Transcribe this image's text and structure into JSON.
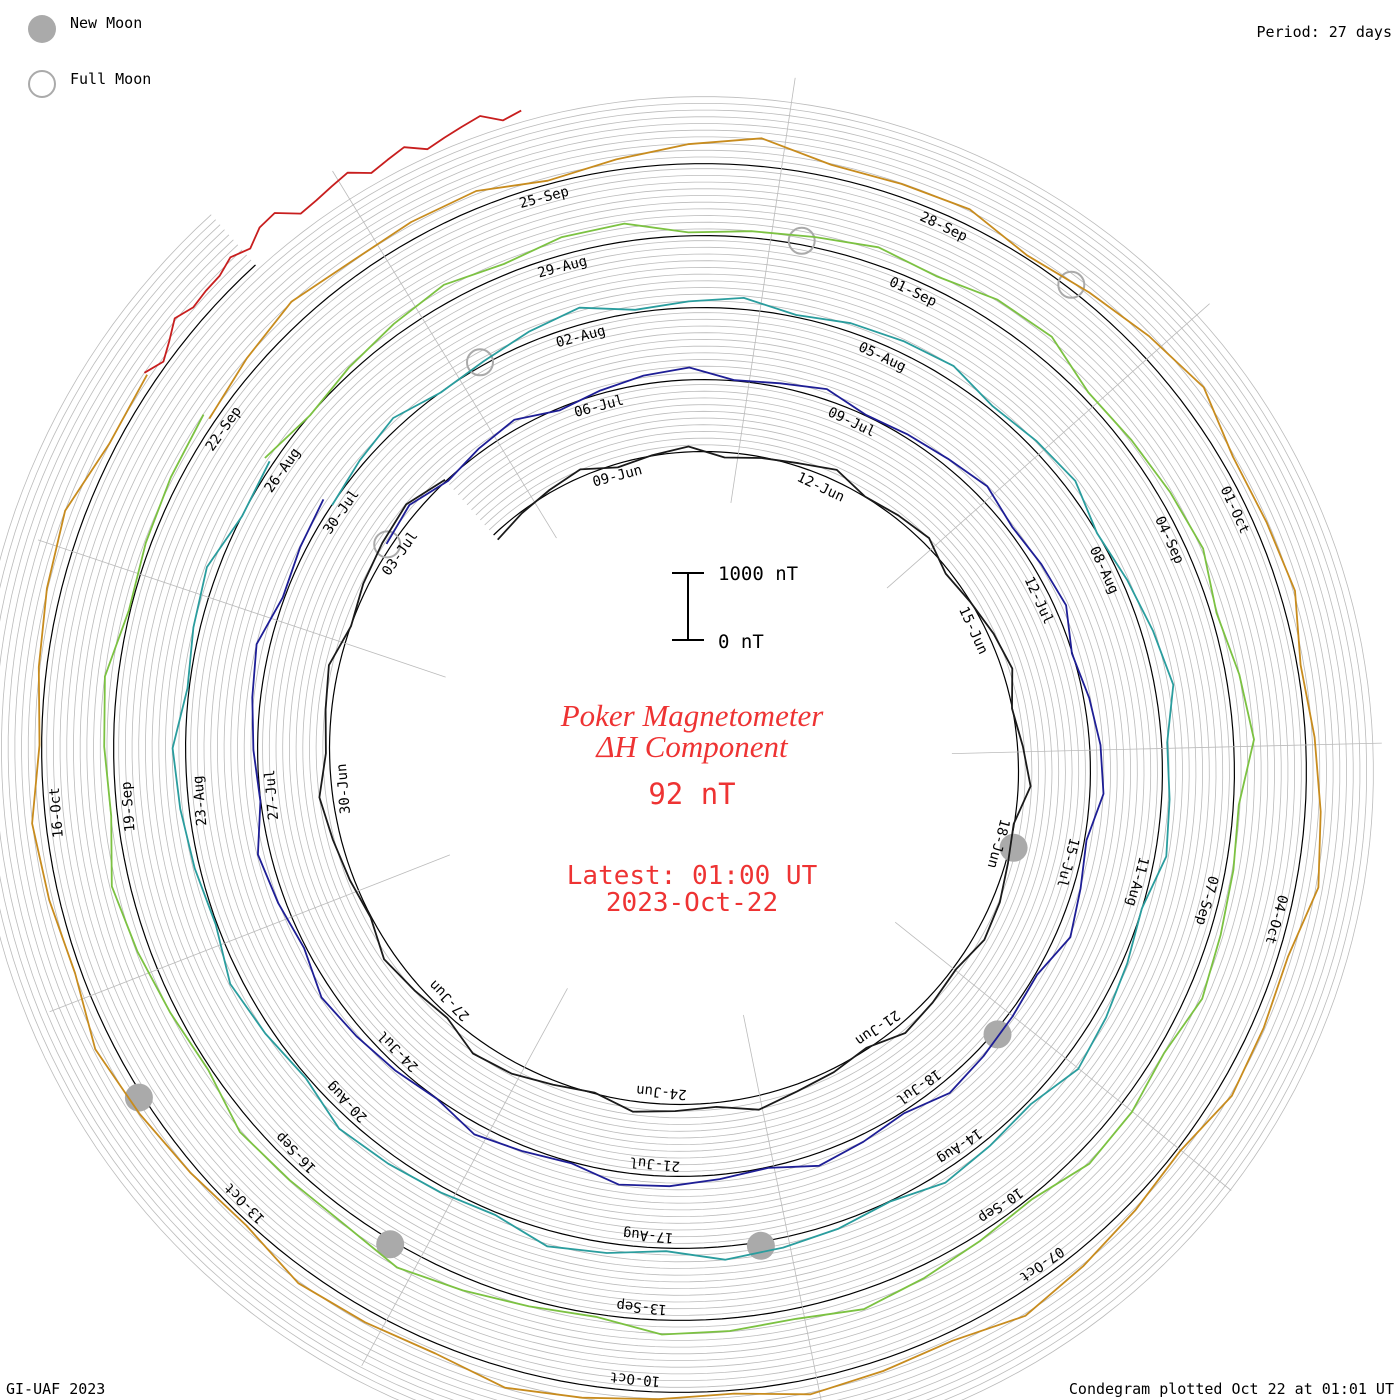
{
  "header": {
    "new_moon_label": "New Moon",
    "full_moon_label": "Full Moon",
    "period_label": "Period: 27 days"
  },
  "center": {
    "title_line1": "Poker Magnetometer",
    "title_line2": "ΔH Component",
    "current_value": "92 nT",
    "latest_line1": "Latest: 01:00 UT",
    "latest_line2": "2023-Oct-22",
    "scale_max_label": "1000 nT",
    "scale_min_label": "0 nT"
  },
  "footer": {
    "credit": "GI-UAF 2023",
    "plotted": "Condegram plotted Oct 22 at 01:01 UT"
  },
  "colors": {
    "title_red": "#ee3333",
    "moon_grey": "#aaaaaa",
    "grid_grey": "#bbbbbb"
  },
  "chart_data": {
    "type": "line",
    "title": "Poker Magnetometer ΔH Component",
    "subtitle": "92 nT",
    "scale_nt": [
      0,
      1000
    ],
    "start_date": "2023-Jun-07",
    "period_days": 27,
    "turns": 5,
    "date_labels": [
      {
        "text": "09-Jun",
        "day": 2
      },
      {
        "text": "12-Jun",
        "day": 5
      },
      {
        "text": "15-Jun",
        "day": 8
      },
      {
        "text": "18-Jun",
        "day": 11
      },
      {
        "text": "21-Jun",
        "day": 14
      },
      {
        "text": "24-Jun",
        "day": 17
      },
      {
        "text": "27-Jun",
        "day": 20
      },
      {
        "text": "30-Jun",
        "day": 23
      },
      {
        "text": "03-Jul",
        "day": 26
      },
      {
        "text": "06-Jul",
        "day": 29
      },
      {
        "text": "09-Jul",
        "day": 32
      },
      {
        "text": "12-Jul",
        "day": 35
      },
      {
        "text": "15-Jul",
        "day": 38
      },
      {
        "text": "18-Jul",
        "day": 41
      },
      {
        "text": "21-Jul",
        "day": 44
      },
      {
        "text": "24-Jul",
        "day": 47
      },
      {
        "text": "27-Jul",
        "day": 50
      },
      {
        "text": "30-Jul",
        "day": 53
      },
      {
        "text": "02-Aug",
        "day": 56
      },
      {
        "text": "05-Aug",
        "day": 59
      },
      {
        "text": "08-Aug",
        "day": 62
      },
      {
        "text": "11-Aug",
        "day": 65
      },
      {
        "text": "14-Aug",
        "day": 68
      },
      {
        "text": "17-Aug",
        "day": 71
      },
      {
        "text": "20-Aug",
        "day": 74
      },
      {
        "text": "23-Aug",
        "day": 77
      },
      {
        "text": "26-Aug",
        "day": 80
      },
      {
        "text": "29-Aug",
        "day": 83
      },
      {
        "text": "01-Sep",
        "day": 86
      },
      {
        "text": "04-Sep",
        "day": 89
      },
      {
        "text": "07-Sep",
        "day": 92
      },
      {
        "text": "10-Sep",
        "day": 95
      },
      {
        "text": "13-Sep",
        "day": 98
      },
      {
        "text": "16-Sep",
        "day": 101
      },
      {
        "text": "19-Sep",
        "day": 104
      },
      {
        "text": "22-Sep",
        "day": 107
      },
      {
        "text": "25-Sep",
        "day": 110
      },
      {
        "text": "28-Sep",
        "day": 113
      },
      {
        "text": "01-Oct",
        "day": 116
      },
      {
        "text": "04-Oct",
        "day": 119
      },
      {
        "text": "07-Oct",
        "day": 122
      },
      {
        "text": "10-Oct",
        "day": 125
      },
      {
        "text": "13-Oct",
        "day": 128
      },
      {
        "text": "16-Oct",
        "day": 131
      }
    ],
    "new_moons": [
      "2023-Jun-18",
      "2023-Jul-17",
      "2023-Aug-16",
      "2023-Sep-15",
      "2023-Oct-14"
    ],
    "full_moons": [
      "2023-Jul-03",
      "2023-Aug-01",
      "2023-Aug-31",
      "2023-Sep-29"
    ],
    "series": [
      {
        "color": "#1a1a1a",
        "dates": "07-Jun – 03-Jul",
        "dh_nt": [
          5,
          8,
          6,
          10,
          12,
          9,
          15,
          20,
          18,
          14,
          60,
          70,
          55,
          40,
          35,
          30,
          45,
          50,
          60,
          80,
          120,
          90,
          70,
          85,
          60,
          110,
          95,
          80,
          75,
          85,
          70,
          110,
          130,
          100,
          90,
          85,
          95,
          140,
          120,
          105,
          95,
          100,
          110,
          95,
          88,
          100,
          120,
          90,
          85,
          95,
          110,
          100,
          92,
          88
        ]
      },
      {
        "color": "#1e1e96",
        "dates": "03-Jul – 30-Jul",
        "dh_nt": [
          40,
          50,
          45,
          60,
          70,
          65,
          80,
          95,
          85,
          75,
          60,
          90,
          110,
          85,
          70,
          95,
          140,
          120,
          100,
          90,
          115,
          130,
          105,
          95,
          110,
          150,
          125,
          100,
          90,
          85,
          95,
          105,
          120,
          110,
          100,
          115,
          90,
          85,
          80,
          95,
          105,
          100,
          90,
          85,
          95,
          110,
          120,
          105,
          95,
          90,
          100,
          92,
          88,
          85
        ]
      },
      {
        "color": "#2a9d9e",
        "dates": "30-Jul – 26-Aug",
        "dh_nt": [
          60,
          70,
          85,
          95,
          80,
          120,
          150,
          110,
          95,
          105,
          130,
          160,
          140,
          110,
          125,
          115,
          100,
          95,
          110,
          140,
          180,
          150,
          120,
          105,
          95,
          110,
          130,
          150,
          120,
          100,
          95,
          105,
          125,
          115,
          100,
          110,
          150,
          170,
          140,
          120,
          110,
          100,
          95,
          105,
          115,
          120,
          110,
          100,
          95,
          90,
          100,
          105,
          95,
          92
        ]
      },
      {
        "color": "#7cc242",
        "dates": "26-Aug – 22-Sep",
        "dh_nt": [
          80,
          95,
          110,
          130,
          160,
          220,
          260,
          200,
          150,
          130,
          120,
          160,
          250,
          320,
          280,
          200,
          160,
          140,
          130,
          150,
          200,
          240,
          180,
          150,
          130,
          140,
          170,
          200,
          160,
          140,
          130,
          150,
          180,
          220,
          190,
          150,
          140,
          130,
          160,
          210,
          250,
          190,
          160,
          140,
          130,
          150,
          170,
          160,
          140,
          130,
          120,
          110,
          100,
          95
        ]
      },
      {
        "color": "#c88c1e",
        "dates": "22-Sep – 19-Oct",
        "dh_nt": [
          120,
          160,
          210,
          280,
          240,
          180,
          150,
          190,
          260,
          320,
          250,
          190,
          160,
          140,
          170,
          230,
          290,
          240,
          180,
          160,
          150,
          170,
          200,
          240,
          210,
          180,
          160,
          150,
          160,
          190,
          230,
          200,
          170,
          160,
          150,
          140,
          160,
          190,
          210,
          180,
          160,
          150,
          140,
          150,
          170,
          160,
          150,
          140,
          130,
          150,
          180,
          200,
          170,
          150
        ]
      },
      {
        "color": "#c81e1e",
        "dates": "19-Oct – 22-Oct",
        "dh_nt": [
          100,
          130,
          180,
          260,
          320,
          280,
          220,
          240,
          300,
          380,
          340,
          260,
          220,
          200,
          180,
          160,
          150,
          140,
          130,
          120,
          110,
          100,
          95,
          92
        ]
      }
    ]
  }
}
